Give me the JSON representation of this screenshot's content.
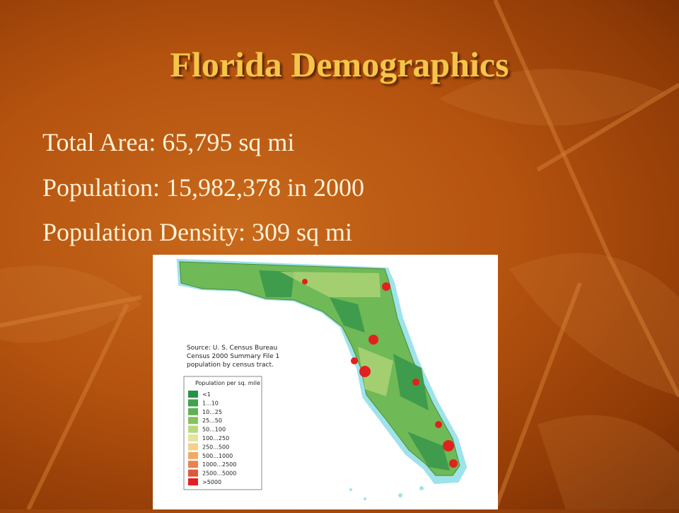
{
  "slide": {
    "title": "Florida Demographics",
    "lines": [
      "Total Area: 65,795 sq mi",
      "Population: 15,982,378 in 2000",
      "Population Density: 309 sq mi"
    ],
    "map": {
      "source": [
        "Source: U. S. Census Bureau",
        "Census 2000 Summary File 1",
        "population by census tract."
      ],
      "legend_title": "Population per sq. mile",
      "legend": [
        {
          "label": "<1",
          "color": "#239447"
        },
        {
          "label": "1...10",
          "color": "#3fa24d"
        },
        {
          "label": "10...25",
          "color": "#5fb153"
        },
        {
          "label": "25...50",
          "color": "#86c25c"
        },
        {
          "label": "50...100",
          "color": "#b9d87c"
        },
        {
          "label": "100...250",
          "color": "#e4e49e"
        },
        {
          "label": "250...500",
          "color": "#f3d08c"
        },
        {
          "label": "500...1000",
          "color": "#f1aa66"
        },
        {
          "label": "1000...2500",
          "color": "#e9834b"
        },
        {
          "label": "2500...5000",
          "color": "#e0573b"
        },
        {
          "label": ">5000",
          "color": "#e2201f"
        }
      ]
    }
  }
}
